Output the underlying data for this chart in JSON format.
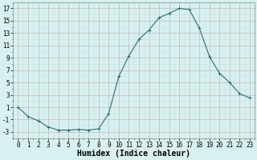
{
  "x": [
    0,
    1,
    2,
    3,
    4,
    5,
    6,
    7,
    8,
    9,
    10,
    11,
    12,
    13,
    14,
    15,
    16,
    17,
    18,
    19,
    20,
    21,
    22,
    23
  ],
  "y": [
    1,
    -0.5,
    -1.2,
    -2.2,
    -2.7,
    -2.7,
    -2.6,
    -2.7,
    -2.5,
    0.0,
    6.0,
    9.3,
    12.0,
    13.5,
    15.5,
    16.2,
    17.0,
    16.8,
    13.8,
    9.2,
    6.5,
    5.0,
    3.2,
    2.5
  ],
  "line_color": "#2d6e6e",
  "marker": "+",
  "marker_size": 3,
  "bg_color": "#d8f0f0",
  "grid_major_color": "#c0b8b8",
  "grid_minor_color": "#c8e4e4",
  "xlabel": "Humidex (Indice chaleur)",
  "xlabel_fontsize": 7,
  "ylabel_ticks": [
    -3,
    -1,
    1,
    3,
    5,
    7,
    9,
    11,
    13,
    15,
    17
  ],
  "xlim": [
    -0.5,
    23.5
  ],
  "ylim": [
    -4,
    18
  ],
  "xtick_labels": [
    "0",
    "1",
    "2",
    "3",
    "4",
    "5",
    "6",
    "7",
    "8",
    "9",
    "10",
    "11",
    "12",
    "13",
    "14",
    "15",
    "16",
    "17",
    "18",
    "19",
    "20",
    "21",
    "22",
    "23"
  ],
  "tick_fontsize": 5.5
}
